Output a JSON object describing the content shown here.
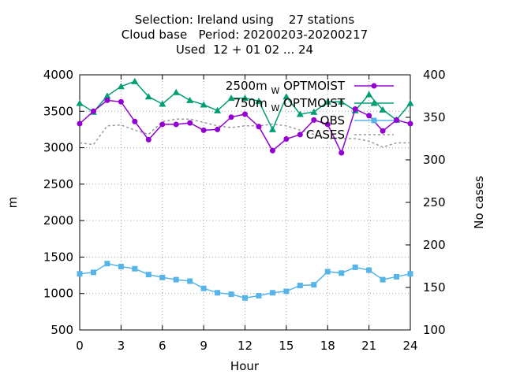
{
  "title_lines": [
    "Selection: Ireland using    27 stations",
    "Cloud base   Period: 20200203-20200217",
    "Used  12 + 01 02 ... 24"
  ],
  "chart_data": {
    "type": "line",
    "xlabel": "Hour",
    "ylabel": "m",
    "y2label": "No cases",
    "xlim": [
      0,
      24
    ],
    "ylim": [
      500,
      4000
    ],
    "y2lim": [
      100,
      400
    ],
    "x_ticks": [
      0,
      3,
      6,
      9,
      12,
      15,
      18,
      21,
      24
    ],
    "y_ticks": [
      500,
      1000,
      1500,
      2000,
      2500,
      3000,
      3500,
      4000
    ],
    "y2_ticks": [
      100,
      150,
      200,
      250,
      300,
      350,
      400
    ],
    "grid": true,
    "legend_placement": "top-right",
    "x": [
      0,
      1,
      2,
      3,
      4,
      5,
      6,
      7,
      8,
      9,
      10,
      11,
      12,
      13,
      14,
      15,
      16,
      17,
      18,
      19,
      20,
      21,
      22,
      23,
      24
    ],
    "series": [
      {
        "name": "2500m",
        "legend_suffix": "OPTMOIST",
        "subscript": "W",
        "color": "#9400d3",
        "marker": "circle",
        "axis": "y",
        "values": [
          3330,
          3500,
          3650,
          3630,
          3360,
          3110,
          3320,
          3320,
          3340,
          3240,
          3250,
          3420,
          3460,
          3290,
          2960,
          3120,
          3180,
          3380,
          3320,
          2930,
          3530,
          3440,
          3230,
          3380,
          3330
        ]
      },
      {
        "name": "750m",
        "legend_suffix": "OPTMOIST",
        "subscript": "W",
        "color": "#009e73",
        "marker": "triangle",
        "axis": "y",
        "values": [
          3610,
          3490,
          3710,
          3840,
          3910,
          3700,
          3600,
          3760,
          3650,
          3590,
          3510,
          3680,
          3680,
          3640,
          3250,
          3700,
          3460,
          3490,
          3630,
          3630,
          3510,
          3730,
          3520,
          3380,
          3610
        ]
      },
      {
        "name": "OBS",
        "color": "#56b4e9",
        "marker": "square",
        "axis": "y",
        "values": [
          1270,
          1290,
          1410,
          1370,
          1340,
          1260,
          1220,
          1190,
          1170,
          1070,
          1010,
          990,
          940,
          970,
          1010,
          1030,
          1110,
          1120,
          1300,
          1280,
          1360,
          1320,
          1190,
          1230,
          1270
        ]
      },
      {
        "name": "CASES",
        "color": "#999999",
        "dashed": true,
        "axis": "y2",
        "values": [
          320,
          318,
          340,
          341,
          335,
          330,
          345,
          348,
          348,
          344,
          340,
          338,
          340,
          340,
          342,
          340,
          335,
          330,
          325,
          325,
          325,
          322,
          315,
          320,
          320
        ]
      }
    ]
  }
}
